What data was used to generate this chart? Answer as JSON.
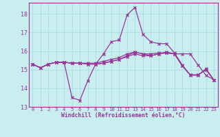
{
  "xlabel": "Windchill (Refroidissement éolien,°C)",
  "bg_color": "#c8eef0",
  "line_color": "#993399",
  "grid_color": "#b0dde0",
  "xlim": [
    -0.5,
    23.5
  ],
  "ylim": [
    13,
    18.6
  ],
  "yticks": [
    13,
    14,
    15,
    16,
    17,
    18
  ],
  "xticks": [
    0,
    1,
    2,
    3,
    4,
    5,
    6,
    7,
    8,
    9,
    10,
    11,
    12,
    13,
    14,
    15,
    16,
    17,
    18,
    19,
    20,
    21,
    22,
    23
  ],
  "lines": [
    [
      15.3,
      15.1,
      15.3,
      15.4,
      15.4,
      13.5,
      13.35,
      14.4,
      15.3,
      15.85,
      16.5,
      16.6,
      17.95,
      18.35,
      16.9,
      16.5,
      16.4,
      16.4,
      15.9,
      15.25,
      14.7,
      14.7,
      15.05,
      14.45
    ],
    [
      15.3,
      15.1,
      15.3,
      15.4,
      15.4,
      15.35,
      15.35,
      15.3,
      15.3,
      15.35,
      15.45,
      15.55,
      15.7,
      15.85,
      15.75,
      15.75,
      15.85,
      15.95,
      15.85,
      15.85,
      15.85,
      15.25,
      14.7,
      14.45
    ],
    [
      15.3,
      15.1,
      15.3,
      15.4,
      15.4,
      15.35,
      15.35,
      15.35,
      15.35,
      15.45,
      15.55,
      15.65,
      15.85,
      15.95,
      15.85,
      15.85,
      15.9,
      15.9,
      15.85,
      15.2,
      14.72,
      14.72,
      15.0,
      14.45
    ],
    [
      15.3,
      15.1,
      15.3,
      15.4,
      15.4,
      15.35,
      15.35,
      15.3,
      15.3,
      15.35,
      15.45,
      15.55,
      15.75,
      15.95,
      15.85,
      15.75,
      15.85,
      15.9,
      15.85,
      15.2,
      14.72,
      14.72,
      15.0,
      14.45
    ]
  ]
}
